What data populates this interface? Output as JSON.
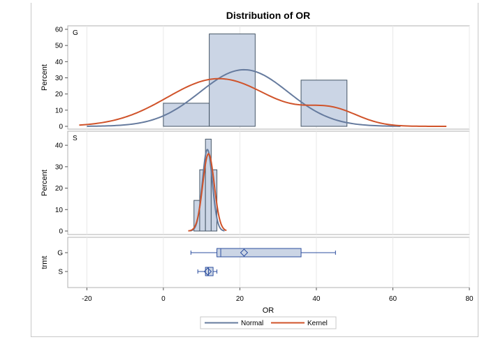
{
  "chart_data": {
    "type": "histogram",
    "title": "Distribution of OR",
    "xlabel": "OR",
    "xlim": [
      -25,
      80
    ],
    "xticks": [
      -20,
      0,
      20,
      40,
      60,
      80
    ],
    "panels": [
      {
        "label": "G",
        "ylabel": "Percent",
        "ylim": [
          0,
          60
        ],
        "yticks": [
          0,
          10,
          20,
          30,
          40,
          50,
          60
        ],
        "bins": [
          {
            "x0": 0,
            "x1": 12,
            "percent": 14.29
          },
          {
            "x0": 12,
            "x1": 24,
            "percent": 57.14
          },
          {
            "x0": 24,
            "x1": 36,
            "percent": 0
          },
          {
            "x0": 36,
            "x1": 48,
            "percent": 28.57
          }
        ],
        "normal": {
          "mean": 21.1,
          "peak": 35,
          "sd": 11.5,
          "xmin": -20,
          "xmax": 62
        },
        "kernel": {
          "mean": 14.5,
          "peak": 29.5,
          "sd": 13.5,
          "secondary": {
            "mean": 44,
            "peak": 9.5,
            "sd": 7
          },
          "xmin": -22,
          "xmax": 74
        }
      },
      {
        "label": "S",
        "ylabel": "Percent",
        "ylim": [
          0,
          42
        ],
        "yticks": [
          0,
          10,
          20,
          30,
          40
        ],
        "bins": [
          {
            "x0": 8,
            "x1": 9.5,
            "percent": 14.29
          },
          {
            "x0": 9.5,
            "x1": 11,
            "percent": 28.57
          },
          {
            "x0": 11,
            "x1": 12.5,
            "percent": 42.86
          },
          {
            "x0": 12.5,
            "x1": 14,
            "percent": 28.57
          }
        ],
        "normal": {
          "mean": 11.5,
          "peak": 38,
          "sd": 1.3,
          "xmin": 7,
          "xmax": 16
        },
        "kernel": {
          "mean": 11.8,
          "peak": 36,
          "sd": 1.5,
          "xmin": 6.5,
          "xmax": 16.5
        }
      }
    ],
    "boxplot": {
      "ylabel": "trmt",
      "groups": [
        {
          "name": "G",
          "min": 7.2,
          "q1": 14,
          "median": 15,
          "mean": 21.1,
          "q3": 36,
          "max": 45
        },
        {
          "name": "S",
          "min": 9,
          "q1": 11,
          "median": 11.8,
          "mean": 11.6,
          "q3": 13,
          "max": 14
        }
      ]
    },
    "legend": {
      "position": "bottom",
      "items": [
        {
          "name": "Normal",
          "color": "#667b9e"
        },
        {
          "name": "Kernel",
          "color": "#d0532a"
        }
      ]
    },
    "colors": {
      "bar_fill": "#cbd5e5",
      "bar_stroke": "#445566",
      "box_stroke": "#2e4f9f"
    }
  }
}
